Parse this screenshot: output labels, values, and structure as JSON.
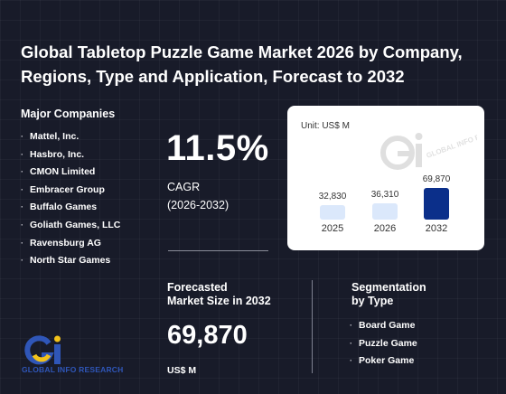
{
  "title": "Global Tabletop Puzzle Game Market 2026 by Company, Regions, Type and Application, Forecast to 2032",
  "companies": {
    "heading": "Major Companies",
    "items": [
      "Mattel, Inc.",
      "Hasbro, Inc.",
      "CMON Limited",
      "Embracer Group",
      "Buffalo Games",
      "Goliath Games, LLC",
      "Ravensburg AG",
      "North Star Games"
    ]
  },
  "cagr": {
    "value": "11.5%",
    "label": "CAGR",
    "period": "(2026-2032)"
  },
  "chart_data": {
    "type": "bar",
    "unit_label": "Unit: US$ M",
    "categories": [
      "2025",
      "2026",
      "2032"
    ],
    "values": [
      32830,
      36310,
      69870
    ],
    "value_labels": [
      "32,830",
      "36,310",
      "69,870"
    ],
    "colors": [
      "#dbe8fb",
      "#dbe8fb",
      "#0b2f8a"
    ]
  },
  "forecast": {
    "label_line1": "Forecasted",
    "label_line2": "Market Size in 2032",
    "value": "69,870",
    "unit": "US$ M"
  },
  "segmentation": {
    "heading_line1": "Segmentation",
    "heading_line2": "by Type",
    "items": [
      "Board Game",
      "Puzzle Game",
      "Poker Game"
    ]
  },
  "logo": {
    "text": "GLOBAL INFO RESEARCH",
    "watermark_text": "GLOBAL INFO RESEARCH"
  },
  "colors": {
    "background": "#181b29",
    "accent_blue": "#0b2f8a",
    "light_bar": "#dbe8fb",
    "logo_blue": "#2f56b8",
    "logo_yellow": "#f2c21a"
  }
}
